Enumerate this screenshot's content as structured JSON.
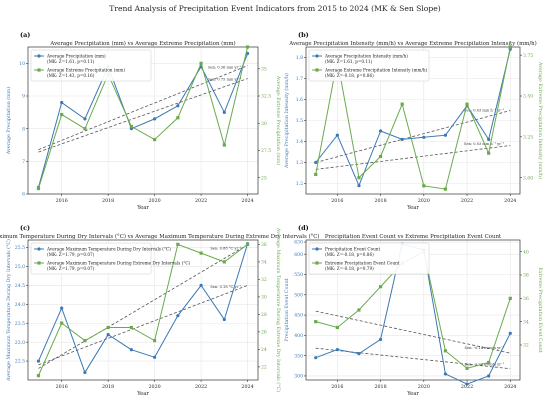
{
  "title": "Trend Analysis of Precipitation Event Indicators from 2015 to 2024 (MK & Sen Slope)",
  "colors": {
    "blue": "#3b78b5",
    "green": "#6aaa4c",
    "trend": "#555555",
    "grid": "#e6e6e6",
    "axis": "#333333"
  },
  "chart_data": [
    {
      "type": "line",
      "panel": "(a)",
      "title": "Average Precipitation (mm) vs Average Extreme Precipitation (mm)",
      "xlabel": "Year",
      "ylabel_left": "Average Precipitation (mm)",
      "ylabel_right": "Average Extreme Precipitation (mm)",
      "x": [
        2015,
        2016,
        2017,
        2018,
        2019,
        2020,
        2021,
        2022,
        2023,
        2024
      ],
      "xticks": [
        "2016",
        "2018",
        "2020",
        "2022",
        "2024"
      ],
      "ylim_left": [
        6,
        10.5
      ],
      "yticks_left": [
        "6",
        "7",
        "8",
        "9",
        "10"
      ],
      "ylim_right": [
        23.5,
        37
      ],
      "yticks_right": [
        "25",
        "27.5",
        "30",
        "32.5",
        "35"
      ],
      "grid": true,
      "legend": "top-left",
      "series": [
        {
          "name": "Average Precipitation (mm)",
          "stats": "(MK: Z=1.61, p=0.11)",
          "axis": "left",
          "color": "#3b78b5",
          "marker": "circle",
          "values": [
            6.2,
            8.8,
            8.3,
            9.9,
            8.0,
            8.3,
            8.7,
            9.9,
            8.5,
            10.3
          ]
        },
        {
          "name": "Average Extreme Precipitation (mm)",
          "stats": "(MK: Z=1.43, p=0.16)",
          "axis": "right",
          "color": "#6aaa4c",
          "marker": "square",
          "values": [
            24.0,
            30.8,
            29.5,
            34.5,
            29.7,
            28.5,
            30.5,
            35.5,
            28.0,
            37.0
          ]
        }
      ],
      "trend_labels": [
        "Sen: 0.36 mm yr⁻¹",
        "Sen: 0.75 mm yr⁻¹"
      ]
    },
    {
      "type": "line",
      "panel": "(b)",
      "title": "Average Precipitation Intensity (mm/h) vs Average Extreme Precipitation Intensity (mm/h)",
      "xlabel": "Year",
      "ylabel_left": "Average Precipitation Intensity (mm/h)",
      "ylabel_right": "Average Extreme Precipitation Intensity (mm/h)",
      "x": [
        2015,
        2016,
        2017,
        2018,
        2019,
        2020,
        2021,
        2022,
        2023,
        2024
      ],
      "xticks": [
        "2016",
        "2018",
        "2020",
        "2022",
        "2024"
      ],
      "ylim_left": [
        1.15,
        1.85
      ],
      "yticks_left": [
        "1.2",
        "1.3",
        "1.4",
        "1.5",
        "1.6",
        "1.7",
        "1.8"
      ],
      "ylim_right": [
        2.9,
        3.8
      ],
      "yticks_right": [
        "3.00",
        "3.25",
        "3.50",
        "3.75"
      ],
      "grid": true,
      "legend": "top-left",
      "series": [
        {
          "name": "Average Precipitation Intensity (mm/h)",
          "stats": "(MK: Z=1.61, p=0.11)",
          "axis": "left",
          "color": "#3b78b5",
          "marker": "circle",
          "values": [
            1.3,
            1.43,
            1.19,
            1.45,
            1.41,
            1.42,
            1.43,
            1.57,
            1.41,
            1.84
          ]
        },
        {
          "name": "Average Extreme Precipitation Intensity (mm/h)",
          "stats": "(MK: Z=-0.18, p=0.86)",
          "axis": "right",
          "color": "#6aaa4c",
          "marker": "square",
          "values": [
            3.02,
            3.72,
            3.0,
            3.13,
            3.45,
            2.95,
            2.93,
            3.45,
            3.15,
            3.8
          ]
        }
      ],
      "trend_labels": [
        "Sen: 0.03 mm h⁻¹ yr⁻¹",
        "Sen: 0.03 mm h⁻¹ yr⁻¹"
      ]
    },
    {
      "type": "line",
      "panel": "(c)",
      "title": "Average Maximum Temperature During Dry Intervals (°C) vs Average Maximum Temperature During Extreme Dry Intervals (°C)",
      "xlabel": "Year",
      "ylabel_left": "Average Maximum Temperature During Dry Intervals (°C)",
      "ylabel_right": "Average Maximum Temperature During Extreme Dry Intervals (°C)",
      "x": [
        2015,
        2016,
        2017,
        2018,
        2019,
        2020,
        2021,
        2022,
        2023,
        2024
      ],
      "xticks": [
        "2016",
        "2018",
        "2020",
        "2022",
        "2024"
      ],
      "ylim_left": [
        22.0,
        25.7
      ],
      "yticks_left": [
        "22.5",
        "23.0",
        "23.5",
        "24.0",
        "24.5",
        "25.0",
        "25.5"
      ],
      "ylim_right": [
        20.5,
        36.5
      ],
      "yticks_right": [
        "22",
        "24",
        "26",
        "28",
        "30",
        "32",
        "34",
        "36"
      ],
      "grid": true,
      "legend": "top-left",
      "series": [
        {
          "name": "Average Maximum Temperature During Dry Intervals (°C)",
          "stats": "(MK: Z=1.79, p=0.07)",
          "axis": "left",
          "color": "#3b78b5",
          "marker": "circle",
          "values": [
            22.5,
            23.9,
            22.2,
            23.2,
            22.8,
            22.6,
            23.7,
            24.5,
            23.6,
            25.6
          ]
        },
        {
          "name": "Average Maximum Temperature During Extreme Dry Intervals (°C)",
          "stats": "(MK: Z=1.79, p=0.07)",
          "axis": "right",
          "color": "#6aaa4c",
          "marker": "square",
          "values": [
            21.0,
            27.0,
            25.0,
            26.5,
            26.5,
            25.0,
            36.0,
            35.0,
            34.0,
            36.0
          ]
        }
      ],
      "trend_labels": [
        "Sen: 0.18 °C yr⁻¹",
        "Sen: 0.88 °C yr⁻¹"
      ]
    },
    {
      "type": "line",
      "panel": "(d)",
      "title": "Precipitation Event Count vs Extreme Precipitation Event Count",
      "xlabel": "Year",
      "ylabel_left": "Precipitation Event Count",
      "ylabel_right": "Extreme Precipitation Event Count",
      "x": [
        2015,
        2016,
        2017,
        2018,
        2019,
        2020,
        2021,
        2022,
        2023,
        2024
      ],
      "xticks": [
        "2016",
        "2018",
        "2020",
        "2022",
        "2024"
      ],
      "ylim_left": [
        290,
        635
      ],
      "yticks_left": [
        "300",
        "350",
        "400",
        "450",
        "500",
        "550",
        "600",
        "630"
      ],
      "ylim_right": [
        29,
        41
      ],
      "yticks_right": [
        "32",
        "34",
        "36",
        "38",
        "40"
      ],
      "grid": true,
      "legend": "top-left",
      "series": [
        {
          "name": "Precipitation Event Count",
          "stats": "(MK: Z=-0.18, p=0.86)",
          "axis": "left",
          "color": "#3b78b5",
          "marker": "circle",
          "values": [
            345,
            365,
            355,
            390,
            625,
            610,
            305,
            280,
            300,
            405
          ]
        },
        {
          "name": "Extreme Precipitation Event Count",
          "stats": "(MK: Z=-0.18, p=0.79)",
          "axis": "right",
          "color": "#6aaa4c",
          "marker": "square",
          "values": [
            34.0,
            33.5,
            35.0,
            37.0,
            39.0,
            40.0,
            31.5,
            30.0,
            30.5,
            36.0
          ]
        }
      ],
      "trend_labels": [
        "Sen: -2.23 events yr⁻¹",
        "Sen: -0.14 events yr⁻¹"
      ]
    }
  ]
}
